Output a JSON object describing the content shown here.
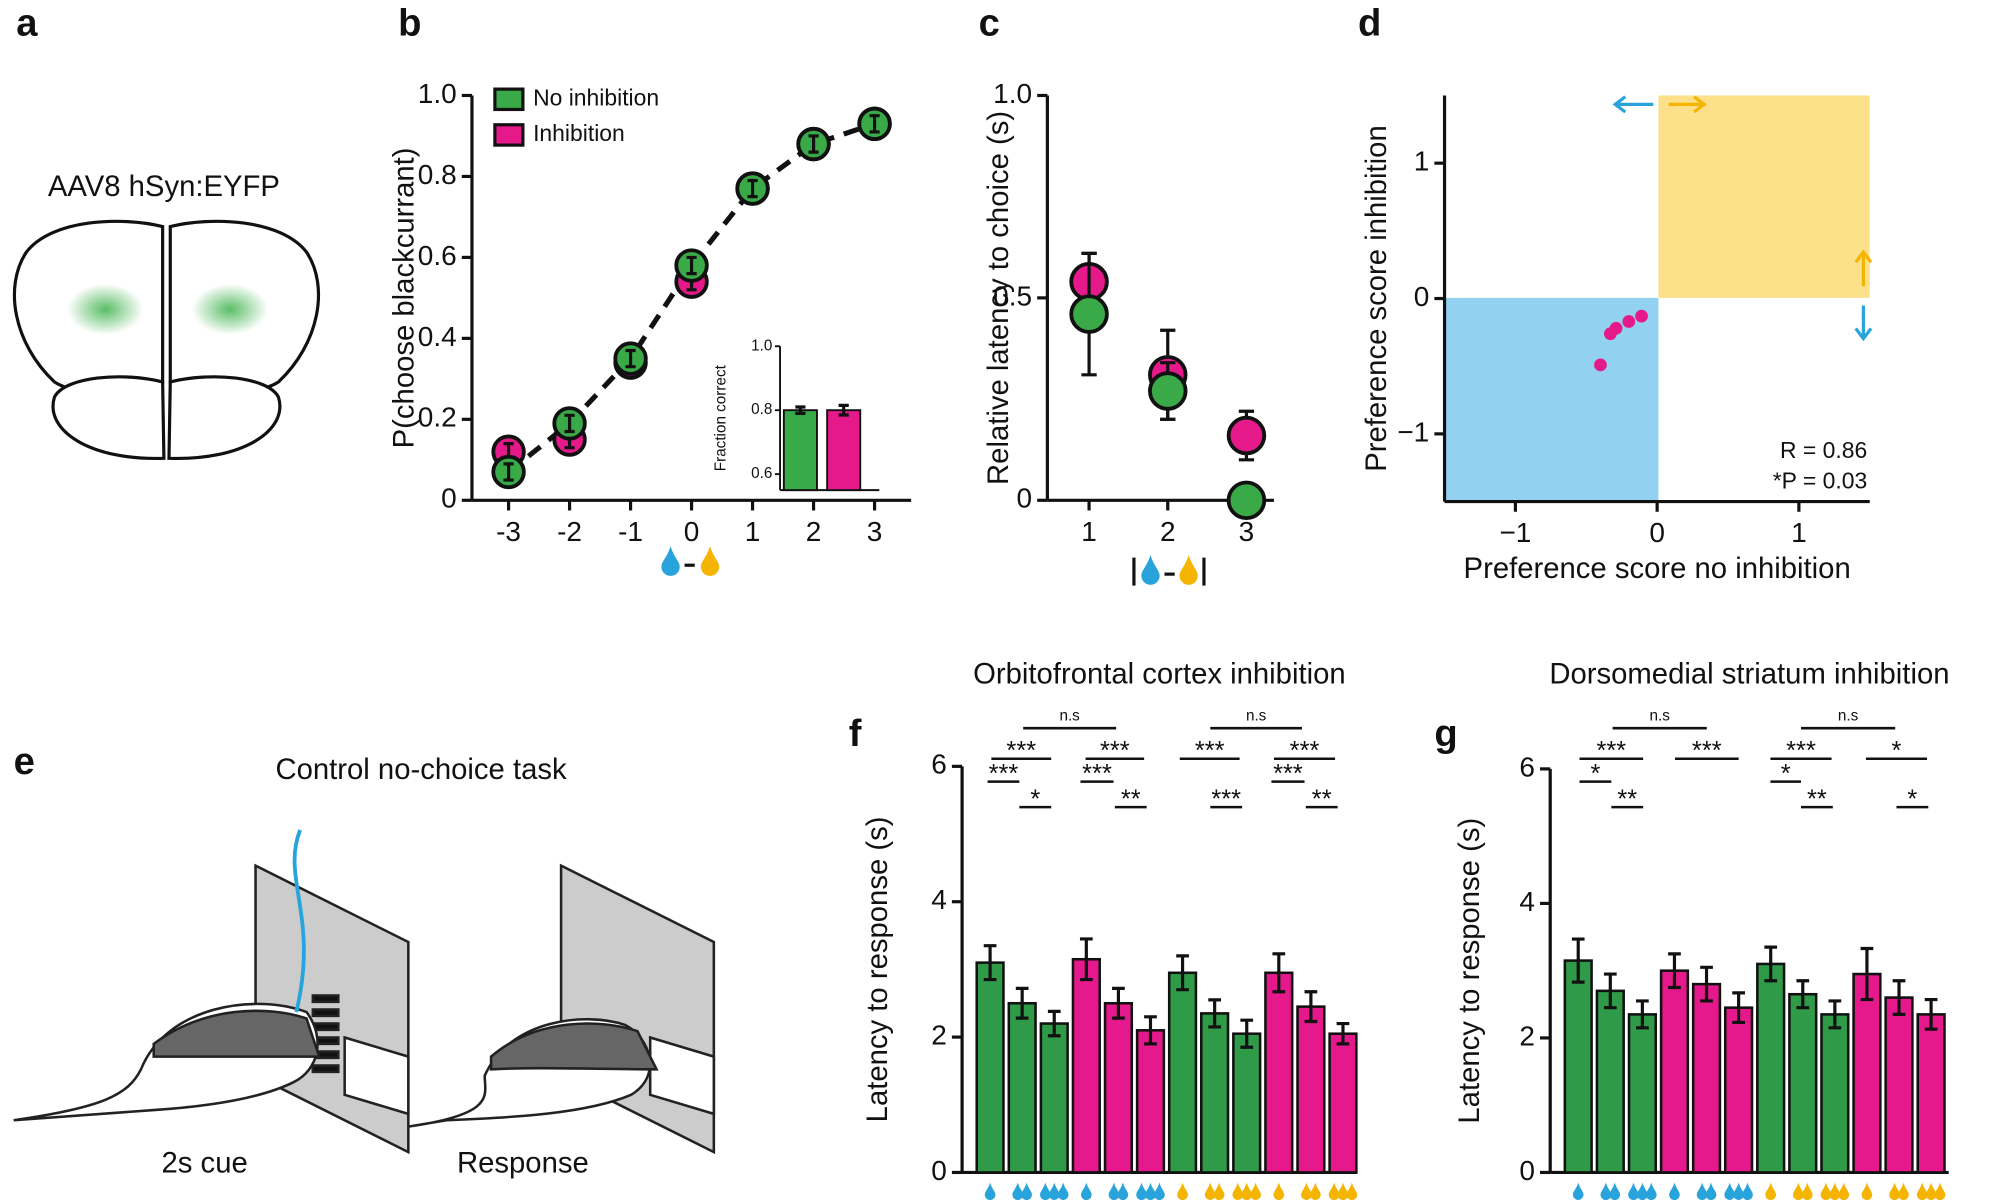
{
  "figure": {
    "panels": [
      "a",
      "b",
      "c",
      "d",
      "e",
      "f",
      "g"
    ],
    "virus": "AAV8 hSyn:EYFP",
    "task_title": "Control no-choice task",
    "cue_label": "2s cue",
    "response_label": "Response"
  },
  "chart_data": [
    {
      "type": "line",
      "ylabel": "P(choose blackcurrant)",
      "x": [
        -3,
        -2,
        -1,
        0,
        1,
        2,
        3
      ],
      "xlim": [
        -3.6,
        3.6
      ],
      "xticks": [
        -3,
        -2,
        -1,
        0,
        1,
        2,
        3
      ],
      "ylim": [
        0,
        1
      ],
      "yticks": [
        0,
        0.2,
        0.4,
        0.6,
        0.8,
        {
          "value": 1,
          "label": "1.0"
        }
      ],
      "series": [
        {
          "name": "No inhibition",
          "color": "#3aaa48",
          "values": [
            0.07,
            0.19,
            0.35,
            0.58,
            0.77,
            0.88,
            0.93
          ],
          "errors": [
            0.02,
            0.02,
            0.02,
            0.02,
            0.02,
            0.02,
            0.02
          ]
        },
        {
          "name": "Inhibition",
          "color": "#e6198a",
          "values": [
            0.12,
            0.15,
            0.34,
            0.54,
            0.77,
            0.88,
            0.93
          ],
          "errors": [
            0.02,
            0.02,
            0.02,
            0.02,
            0.02,
            0.02,
            0.02
          ]
        }
      ]
    },
    {
      "type": "bar",
      "ylabel": "Fraction correct",
      "ylim": [
        0.55,
        1
      ],
      "yticks": [
        0.6,
        0.8,
        {
          "value": 1,
          "label": "1.0"
        }
      ],
      "values": [
        0.8,
        0.8
      ],
      "errors": [
        0.01,
        0.015
      ],
      "colors": [
        "#3aaa48",
        "#e6198a"
      ]
    },
    {
      "type": "scatter",
      "ylabel": "Relative latency to choice (s)",
      "x": [
        1,
        2,
        3
      ],
      "xlim": [
        0.47,
        3.35
      ],
      "xticks": [
        1,
        2,
        3
      ],
      "ylim": [
        0,
        1
      ],
      "yticks": [
        0,
        0.5,
        {
          "value": 1,
          "label": "1.0"
        }
      ],
      "series": [
        {
          "name": "No inhibition",
          "color": "#3aaa48",
          "values": [
            0.46,
            0.27,
            0.0
          ],
          "errors": [
            0.15,
            0.07,
            0.0
          ]
        },
        {
          "name": "Inhibition",
          "color": "#e6198a",
          "values": [
            0.54,
            0.31,
            0.16
          ],
          "errors": [
            0.07,
            0.11,
            0.06
          ]
        }
      ]
    },
    {
      "type": "scatter",
      "xlabel": "Preference score no inhibition",
      "ylabel": "Preference score inhibition",
      "xlim": [
        -1.5,
        1.5
      ],
      "ylim": [
        -1.5,
        1.5
      ],
      "xticks": [
        {
          "value": -1,
          "label": "−1"
        },
        0,
        1
      ],
      "yticks": [
        {
          "value": -1,
          "label": "−1"
        },
        0,
        1
      ],
      "series": [
        {
          "color": "#e6198a",
          "x": [
            -0.4,
            -0.33,
            -0.29,
            -0.2,
            -0.11
          ],
          "values": [
            -0.49,
            -0.26,
            -0.22,
            -0.17,
            -0.13
          ]
        }
      ],
      "annotations": [
        "R = 0.86",
        "*P = 0.03"
      ]
    },
    {
      "type": "bar",
      "title": "Orbitofrontal cortex inhibition",
      "ylabel": "Latency to response (s)",
      "ylim": [
        0,
        6
      ],
      "yticks": [
        0,
        2,
        4,
        6
      ],
      "values": [
        3.1,
        2.5,
        2.2,
        3.15,
        2.5,
        2.1,
        2.95,
        2.35,
        2.05,
        2.95,
        2.45,
        2.05
      ],
      "errors": [
        0.25,
        0.22,
        0.18,
        0.3,
        0.22,
        0.2,
        0.25,
        0.2,
        0.2,
        0.28,
        0.22,
        0.15
      ],
      "colors": [
        "#2f9a48",
        "#2f9a48",
        "#2f9a48",
        "#e5198b",
        "#e5198b",
        "#e5198b",
        "#2f9a48",
        "#2f9a48",
        "#2f9a48",
        "#e5198b",
        "#e5198b",
        "#e5198b"
      ],
      "annotations": [
        "n.s",
        "n.s",
        "***",
        "***",
        "***",
        "***",
        "***",
        "***",
        "***",
        "*",
        "**",
        "***",
        "**"
      ]
    },
    {
      "type": "bar",
      "title": "Dorsomedial striatum inhibition",
      "ylabel": "Latency to response (s)",
      "ylim": [
        0,
        6
      ],
      "yticks": [
        0,
        2,
        4,
        6
      ],
      "values": [
        3.15,
        2.7,
        2.35,
        3.0,
        2.8,
        2.45,
        3.1,
        2.65,
        2.35,
        2.95,
        2.6,
        2.35
      ],
      "errors": [
        0.32,
        0.25,
        0.2,
        0.25,
        0.25,
        0.22,
        0.25,
        0.2,
        0.2,
        0.38,
        0.25,
        0.22
      ],
      "colors": [
        "#2f9a48",
        "#2f9a48",
        "#2f9a48",
        "#e5198b",
        "#e5198b",
        "#e5198b",
        "#2f9a48",
        "#2f9a48",
        "#2f9a48",
        "#e5198b",
        "#e5198b",
        "#e5198b"
      ],
      "annotations": [
        "n.s",
        "n.s",
        "***",
        "***",
        "***",
        "*",
        "*",
        "*",
        "**",
        "**",
        "*"
      ]
    }
  ]
}
